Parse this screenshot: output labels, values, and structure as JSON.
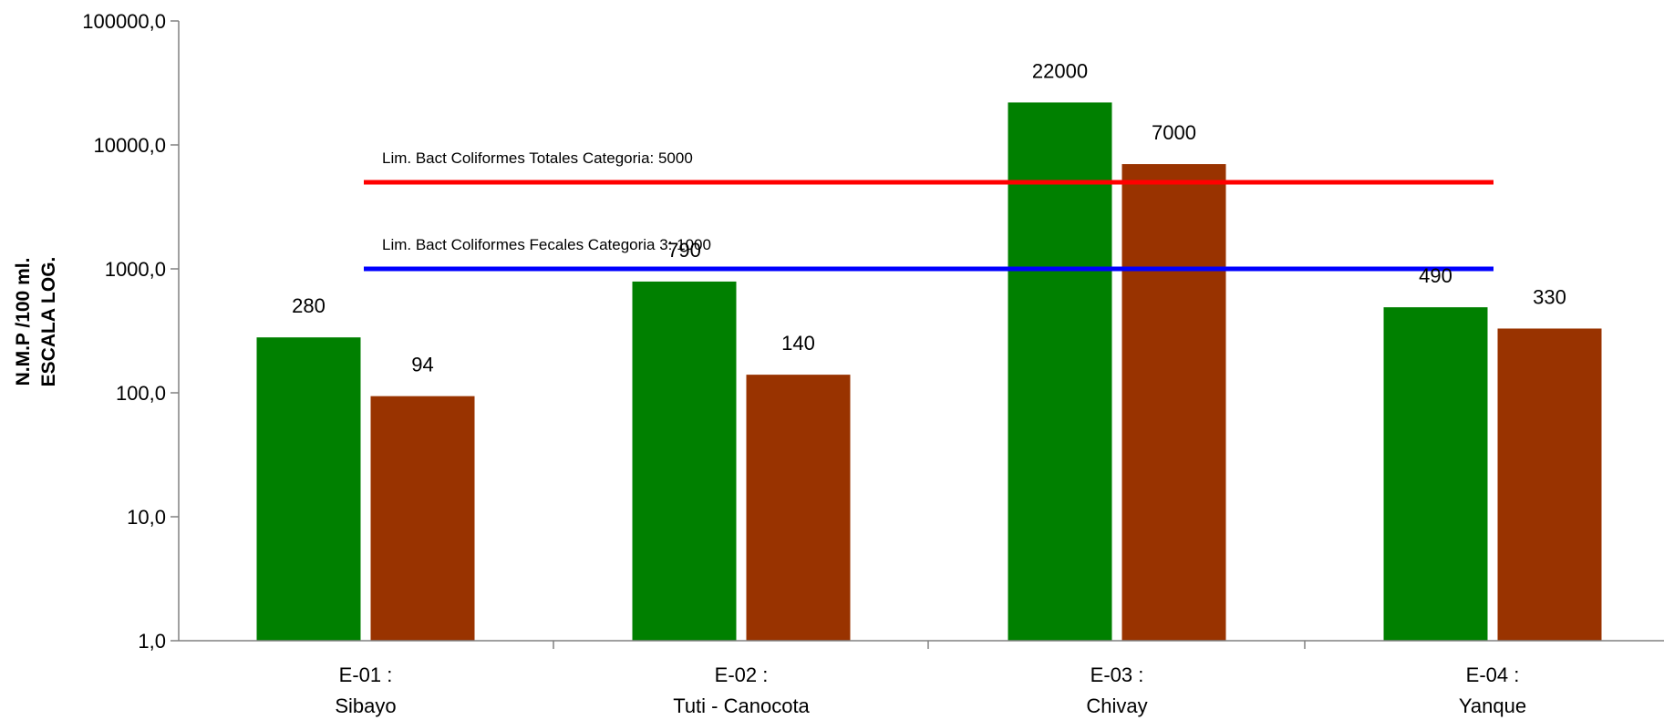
{
  "chart_data": {
    "type": "bar",
    "title": "",
    "xlabel": "",
    "ylabel": [
      "N.M.P /100 ml.",
      "ESCALA LOG."
    ],
    "yscale": "log",
    "ylim": [
      1,
      100000
    ],
    "yticks": [
      1,
      10,
      100,
      1000,
      10000,
      100000
    ],
    "ytick_labels": [
      "1,0",
      "10,0",
      "100,0",
      "1000,0",
      "10000,0",
      "100000,0"
    ],
    "grid": false,
    "legend": "none",
    "categories": [
      [
        "E-01 :",
        "Sibayo"
      ],
      [
        "E-02 :",
        "Tuti - Canocota"
      ],
      [
        "E-03 :",
        "Chivay"
      ],
      [
        "E-04 :",
        "Yanque"
      ]
    ],
    "series": [
      {
        "color": "#008000",
        "values": [
          280,
          790,
          22000,
          490
        ],
        "labels": [
          "280",
          "790",
          "22000",
          "490"
        ]
      },
      {
        "color": "#993300",
        "values": [
          94,
          140,
          7000,
          330
        ],
        "labels": [
          "94",
          "140",
          "7000",
          "330"
        ]
      }
    ],
    "reference_lines": [
      {
        "label": "Lim. Bact Coliformes Totales Categoria: 5000",
        "value": 5000,
        "color": "#ff0000"
      },
      {
        "label": "Lim. Bact Coliformes Fecales Categoria 3: 1000",
        "value": 1000,
        "color": "#0000ff"
      }
    ]
  }
}
